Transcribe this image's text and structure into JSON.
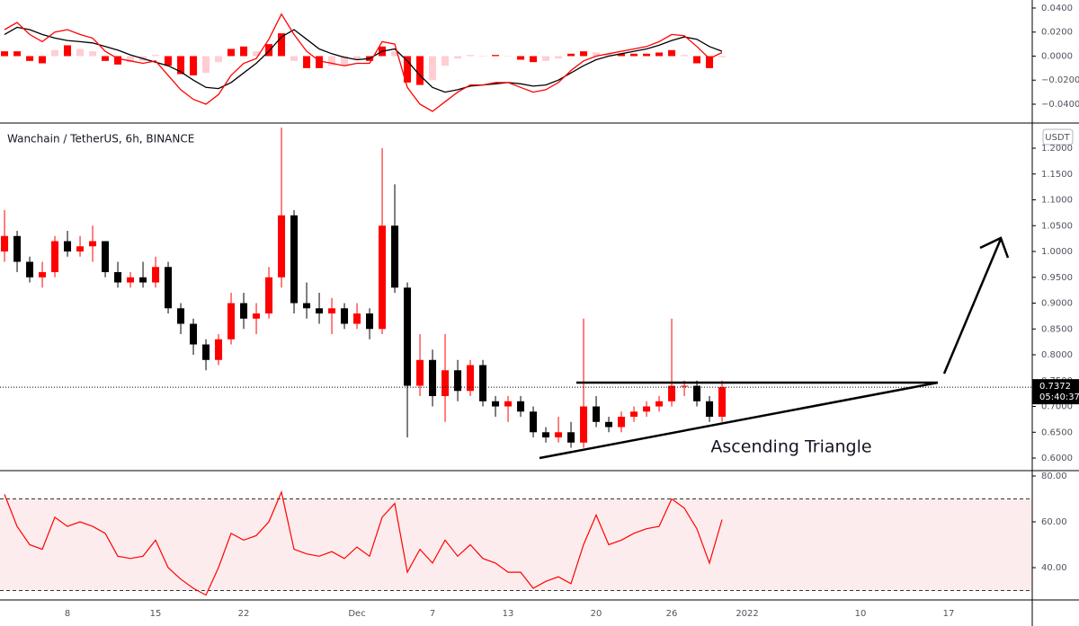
{
  "chart_data": [
    {
      "type": "macd",
      "ylim": [
        -0.0557,
        0.0467
      ],
      "yticks": [
        {
          "value": 0.04,
          "label": "0.0400"
        },
        {
          "value": 0.02,
          "label": "0.0200"
        },
        {
          "value": 0,
          "label": "0.0000"
        },
        {
          "value": -0.02,
          "label": "−0.0200"
        },
        {
          "value": -0.04,
          "label": "−0.0400"
        }
      ],
      "series": [
        {
          "color": "#000000",
          "values": [
            0.018,
            0.024,
            0.022,
            0.018,
            0.015,
            0.013,
            0.012,
            0.011,
            0.008,
            0.005,
            0.001,
            -0.002,
            -0.005,
            -0.008,
            -0.013,
            -0.02,
            -0.026,
            -0.027,
            -0.022,
            -0.014,
            -0.006,
            0.004,
            0.016,
            0.022,
            0.014,
            0.006,
            0.002,
            -0.001,
            -0.003,
            -0.002,
            0.004,
            0.006,
            -0.004,
            -0.016,
            -0.026,
            -0.03,
            -0.028,
            -0.025,
            -0.024,
            -0.023,
            -0.022,
            -0.023,
            -0.025,
            -0.024,
            -0.02,
            -0.014,
            -0.008,
            -0.003,
            0,
            0.002,
            0.004,
            0.006,
            0.009,
            0.013,
            0.016,
            0.014,
            0.008,
            0.004
          ]
        },
        {
          "color": "#ff0000",
          "values": [
            0.022,
            0.028,
            0.018,
            0.012,
            0.02,
            0.022,
            0.018,
            0.015,
            0.004,
            -0.002,
            -0.004,
            -0.006,
            -0.004,
            -0.016,
            -0.028,
            -0.036,
            -0.04,
            -0.032,
            -0.016,
            -0.006,
            -0.002,
            0.014,
            0.035,
            0.018,
            0.004,
            -0.004,
            -0.006,
            -0.008,
            -0.006,
            -0.006,
            0.012,
            0.01,
            -0.026,
            -0.04,
            -0.046,
            -0.038,
            -0.03,
            -0.024,
            -0.024,
            -0.022,
            -0.022,
            -0.026,
            -0.03,
            -0.028,
            -0.022,
            -0.012,
            -0.004,
            0,
            0.002,
            0.004,
            0.006,
            0.008,
            0.012,
            0.018,
            0.017,
            0.008,
            -0.002,
            0.003
          ]
        }
      ],
      "histogram": [
        0.004,
        0.004,
        -0.004,
        -0.006,
        0.005,
        0.009,
        0.006,
        0.004,
        -0.004,
        -0.007,
        -0.005,
        -0.004,
        0.001,
        -0.008,
        -0.015,
        -0.016,
        -0.014,
        -0.005,
        0.006,
        0.008,
        0.004,
        0.01,
        0.019,
        -0.004,
        -0.01,
        -0.01,
        -0.008,
        -0.007,
        -0.003,
        -0.004,
        0.008,
        0.004,
        -0.022,
        -0.024,
        -0.02,
        -0.008,
        -0.002,
        0.001,
        0,
        0.001,
        0,
        -0.003,
        -0.005,
        -0.004,
        -0.002,
        0.002,
        0.004,
        0.003,
        0.002,
        0.002,
        0.002,
        0.002,
        0.003,
        0.005,
        0.001,
        -0.006,
        -0.01,
        -0.001
      ],
      "histogram_colors": [
        "#ff0000",
        "#ffcdd2"
      ]
    },
    {
      "type": "candlestick",
      "title": "Wanchain / TetherUS, 6h, BINANCE",
      "currency": "USDT",
      "annotation": "Ascending Triangle",
      "x": [
        2,
        3,
        4,
        5,
        6,
        7,
        8,
        9,
        10,
        11,
        12,
        13,
        14,
        15,
        16,
        17,
        18,
        19,
        20,
        21,
        22,
        23,
        24,
        25,
        26,
        27,
        28,
        29,
        30,
        31,
        32,
        33,
        34,
        35,
        36,
        37,
        38,
        39,
        40,
        41,
        42,
        43,
        44,
        45,
        46,
        47,
        48,
        49,
        50,
        51,
        52,
        53,
        54,
        55,
        56,
        57,
        58,
        59
      ],
      "open": [
        1.0,
        1.03,
        0.98,
        0.95,
        0.96,
        1.02,
        1.0,
        1.01,
        1.02,
        0.96,
        0.94,
        0.95,
        0.94,
        0.97,
        0.89,
        0.86,
        0.82,
        0.79,
        0.83,
        0.9,
        0.87,
        0.88,
        0.95,
        1.07,
        0.9,
        0.89,
        0.88,
        0.89,
        0.86,
        0.88,
        0.85,
        1.05,
        0.93,
        0.74,
        0.79,
        0.72,
        0.77,
        0.73,
        0.78,
        0.71,
        0.7,
        0.71,
        0.69,
        0.65,
        0.64,
        0.65,
        0.63,
        0.7,
        0.67,
        0.66,
        0.68,
        0.69,
        0.7,
        0.71,
        0.74,
        0.74,
        0.71,
        0.68
      ],
      "high": [
        1.08,
        1.04,
        0.99,
        0.98,
        1.03,
        1.04,
        1.03,
        1.05,
        1.02,
        0.98,
        0.96,
        0.98,
        0.99,
        0.98,
        0.9,
        0.87,
        0.83,
        0.84,
        0.92,
        0.92,
        0.9,
        0.97,
        1.24,
        1.08,
        0.94,
        0.92,
        0.91,
        0.9,
        0.9,
        0.89,
        1.2,
        1.13,
        0.94,
        0.84,
        0.81,
        0.84,
        0.79,
        0.79,
        0.79,
        0.72,
        0.72,
        0.72,
        0.7,
        0.66,
        0.68,
        0.67,
        0.87,
        0.72,
        0.68,
        0.69,
        0.7,
        0.71,
        0.72,
        0.87,
        0.75,
        0.75,
        0.72,
        0.75
      ],
      "low": [
        0.98,
        0.96,
        0.94,
        0.93,
        0.95,
        0.99,
        0.99,
        0.98,
        0.95,
        0.93,
        0.93,
        0.93,
        0.93,
        0.88,
        0.84,
        0.8,
        0.77,
        0.78,
        0.82,
        0.85,
        0.84,
        0.87,
        0.93,
        0.88,
        0.87,
        0.86,
        0.84,
        0.85,
        0.85,
        0.83,
        0.84,
        0.92,
        0.64,
        0.72,
        0.7,
        0.67,
        0.71,
        0.72,
        0.7,
        0.68,
        0.67,
        0.68,
        0.64,
        0.63,
        0.63,
        0.62,
        0.62,
        0.66,
        0.65,
        0.65,
        0.67,
        0.68,
        0.69,
        0.7,
        0.72,
        0.7,
        0.67,
        0.67
      ],
      "close": [
        1.03,
        0.98,
        0.95,
        0.96,
        1.02,
        1.0,
        1.01,
        1.02,
        0.96,
        0.94,
        0.95,
        0.94,
        0.97,
        0.89,
        0.86,
        0.82,
        0.79,
        0.83,
        0.9,
        0.87,
        0.88,
        0.95,
        1.07,
        0.9,
        0.89,
        0.88,
        0.89,
        0.86,
        0.88,
        0.85,
        1.05,
        0.93,
        0.74,
        0.79,
        0.72,
        0.77,
        0.73,
        0.78,
        0.71,
        0.7,
        0.71,
        0.69,
        0.65,
        0.64,
        0.65,
        0.63,
        0.7,
        0.67,
        0.66,
        0.68,
        0.69,
        0.7,
        0.71,
        0.74,
        0.74,
        0.71,
        0.68,
        0.7372
      ],
      "up_color": "#ff0000",
      "down_color": "#000000",
      "last_price": 0.7372,
      "countdown": "05:40:37",
      "ylim": [
        0.5757,
        1.2487
      ],
      "yticks": [
        {
          "value": 0.6,
          "label": "0.6000"
        },
        {
          "value": 0.65,
          "label": "0.6500"
        },
        {
          "value": 0.7,
          "label": "0.7000"
        },
        {
          "value": 0.75,
          "label": "0.7500"
        },
        {
          "value": 0.8,
          "label": "0.8000"
        },
        {
          "value": 0.85,
          "label": "0.8500"
        },
        {
          "value": 0.9,
          "label": "0.9000"
        },
        {
          "value": 0.95,
          "label": "0.9500"
        },
        {
          "value": 1.0,
          "label": "1.0000"
        },
        {
          "value": 1.05,
          "label": "1.0500"
        },
        {
          "value": 1.1,
          "label": "1.1000"
        },
        {
          "value": 1.15,
          "label": "1.1500"
        },
        {
          "value": 1.2,
          "label": "1.2000"
        }
      ],
      "xlim": [
        1.64,
        83.64
      ],
      "xticks": [
        {
          "value": 7,
          "label": "8"
        },
        {
          "value": 14,
          "label": "15"
        },
        {
          "value": 21,
          "label": "22"
        },
        {
          "value": 30,
          "label": "Dec"
        },
        {
          "value": 36,
          "label": "7"
        },
        {
          "value": 42,
          "label": "13"
        },
        {
          "value": 49,
          "label": "20"
        },
        {
          "value": 55,
          "label": "26"
        },
        {
          "value": 61,
          "label": "2022"
        },
        {
          "value": 70,
          "label": "10"
        },
        {
          "value": 77,
          "label": "17"
        }
      ]
    },
    {
      "type": "rsi",
      "color": "#ff0000",
      "values": [
        72,
        58,
        50,
        48,
        62,
        58,
        60,
        58,
        55,
        45,
        44,
        45,
        52,
        40,
        35,
        31,
        28,
        40,
        55,
        52,
        54,
        60,
        73,
        48,
        46,
        45,
        47,
        44,
        49,
        45,
        62,
        68,
        38,
        48,
        42,
        52,
        45,
        50,
        44,
        42,
        38,
        38,
        31,
        34,
        36,
        33,
        50,
        63,
        50,
        52,
        55,
        57,
        58,
        70,
        66,
        57,
        42,
        61
      ],
      "upper_band": 70,
      "lower_band": 30,
      "band_color": "#fdeced",
      "ylim": [
        25.9,
        82.35
      ],
      "yticks": [
        {
          "value": 80,
          "label": "80.00"
        },
        {
          "value": 60,
          "label": "60.00"
        },
        {
          "value": 40,
          "label": "40.00"
        }
      ]
    }
  ]
}
